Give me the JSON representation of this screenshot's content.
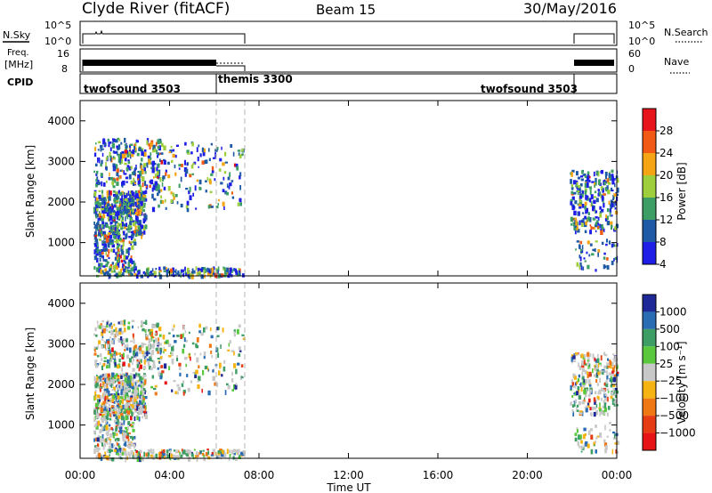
{
  "header": {
    "station": "Clyde River (fitACF)",
    "beam": "Beam 15",
    "date": "30/May/2016"
  },
  "sky_panel": {
    "left_label": "N.Sky",
    "right_label": "N.Search",
    "left_ticks": [
      "10^5",
      "10^0"
    ],
    "right_ticks": [
      "10^5",
      "10^0"
    ]
  },
  "freq_panel": {
    "left_label_line1": "Freq.",
    "left_label_line2": "[MHz]",
    "left_ticks": [
      "16",
      "8"
    ],
    "right_label": "Nave",
    "right_ticks": [
      "60",
      "0"
    ]
  },
  "cpid_panel": {
    "label": "CPID",
    "entries": [
      {
        "text": "twofsound 3503",
        "start": "00:00"
      },
      {
        "text": "themis 3300",
        "start": "06:00"
      },
      {
        "text": "twofsound 3503",
        "start": "21:40"
      }
    ]
  },
  "power_panel": {
    "ylabel": "Slant Range [km]",
    "yticks": [
      "4000",
      "3000",
      "2000",
      "1000"
    ],
    "colorbar_label": "Power [dB]",
    "colorbar_ticks": [
      "28",
      "24",
      "20",
      "16",
      "12",
      "8",
      "4"
    ],
    "colorbar_colors": [
      "#e8141c",
      "#f05a14",
      "#f5a514",
      "#9fce3c",
      "#3c9e64",
      "#1e5aa5",
      "#1e1ee6"
    ]
  },
  "velocity_panel": {
    "ylabel": "Slant Range [km]",
    "yticks": [
      "4000",
      "3000",
      "2000",
      "1000"
    ],
    "colorbar_label": "Velocity [m s⁻¹]",
    "colorbar_ticks": [
      "1000",
      "500",
      "100",
      "25",
      "−25",
      "−100",
      "−500",
      "−1000"
    ],
    "colorbar_colors": [
      "#1e2896",
      "#2a6cb4",
      "#3c9e64",
      "#5ac83c",
      "#c8c8c8",
      "#f5b414",
      "#f07814",
      "#e63c14",
      "#e61414"
    ]
  },
  "xaxis": {
    "ticks": [
      "00:00",
      "04:00",
      "08:00",
      "12:00",
      "16:00",
      "20:00",
      "00:00"
    ],
    "label": "Time UT"
  },
  "chart_data": {
    "type": "heatmap",
    "x_range_hours": [
      0,
      24
    ],
    "y_range_km": [
      180,
      4500
    ],
    "data_intervals": [
      {
        "start_hour": 0.55,
        "end_hour": 7.35,
        "mode": "twofsound/themis"
      },
      {
        "start_hour": 21.9,
        "end_hour": 24.0,
        "mode": "twofsound"
      }
    ],
    "dashed_markers_hours": [
      6.0,
      7.35
    ]
  }
}
